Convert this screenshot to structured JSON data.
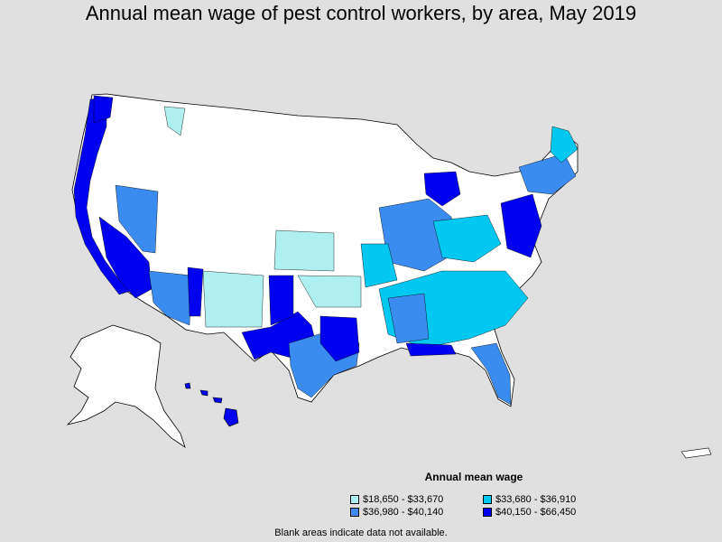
{
  "title": "Annual mean wage of pest control workers, by area, May 2019",
  "legend": {
    "title": "Annual mean wage",
    "items": [
      {
        "label": "$18,650 - $33,670",
        "color": "#aef0f0"
      },
      {
        "label": "$33,680 - $36,910",
        "color": "#00c8f0"
      },
      {
        "label": "$36,980 - $40,140",
        "color": "#3a8cf0"
      },
      {
        "label": "$40,150 - $66,450",
        "color": "#0000f0"
      }
    ]
  },
  "footnote": "Blank areas indicate data not available.",
  "colors": {
    "background": "#e0e0e0",
    "no_data": "#ffffff",
    "border": "#000000"
  }
}
